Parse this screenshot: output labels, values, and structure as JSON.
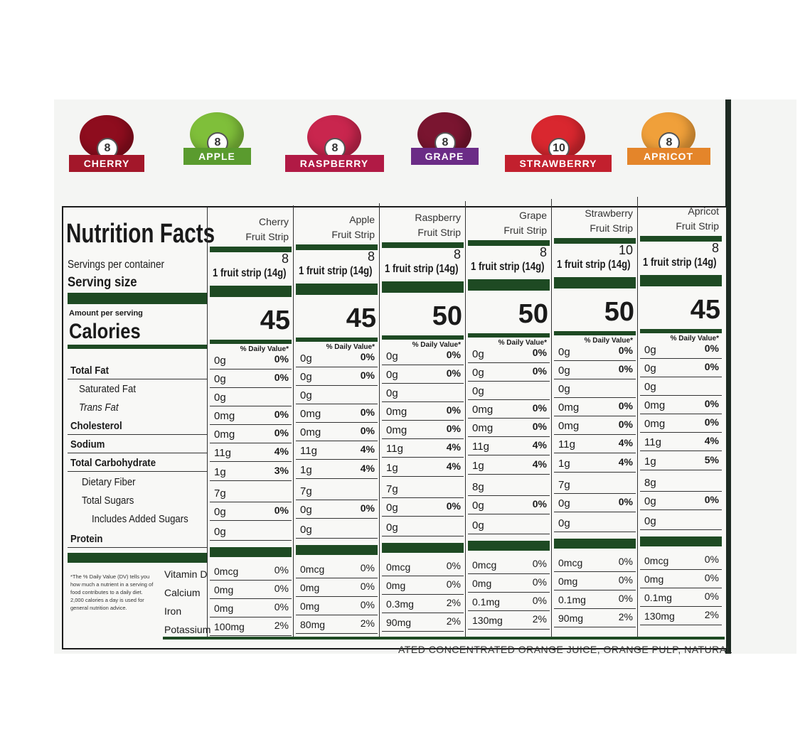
{
  "flavors": [
    {
      "name": "CHERRY",
      "count": "8",
      "color": "#a3172a",
      "fruit": "#8e0d1e"
    },
    {
      "name": "APPLE",
      "count": "8",
      "color": "#5a9b2e",
      "fruit": "#7fbf3a"
    },
    {
      "name": "RASPBERRY",
      "count": "8",
      "color": "#b11a45",
      "fruit": "#c9264e"
    },
    {
      "name": "GRAPE",
      "count": "8",
      "color": "#6b2c86",
      "fruit": "#7a1530"
    },
    {
      "name": "STRAWBERRY",
      "count": "10",
      "color": "#c2202e",
      "fruit": "#d9272f"
    },
    {
      "name": "APRICOT",
      "count": "8",
      "color": "#e4852a",
      "fruit": "#f0a03a"
    }
  ],
  "label": {
    "title": "Nutrition Facts",
    "servings_label": "Servings per container",
    "serving_size_label": "Serving size",
    "amount_label": "Amount per serving",
    "calories_label": "Calories",
    "dv_label": "% Daily Value*",
    "nutrients": [
      "Total Fat",
      "Saturated Fat",
      "Trans Fat",
      "Cholesterol",
      "Sodium",
      "Total Carbohydrate",
      "Dietary Fiber",
      "Total Sugars",
      "Includes Added Sugars",
      "Protein"
    ],
    "minerals": [
      "Vitamin D",
      "Calcium",
      "Iron",
      "Potassium"
    ],
    "footnote": "*The % Daily Value (DV) tells you how much a nutrient in a serving of food contributes to a daily diet. 2,000 calories a day is used for general nutrition advice."
  },
  "columns": [
    {
      "name1": "Cherry",
      "name2": "Fruit Strip",
      "servings": "8",
      "size": "1 fruit strip (14g)",
      "calories": "45",
      "amounts": [
        "0g",
        "0g",
        "0g",
        "0mg",
        "0mg",
        "11g",
        "1g",
        "7g",
        "0g",
        "0g"
      ],
      "dv": [
        "0%",
        "0%",
        "",
        "0%",
        "0%",
        "4%",
        "3%",
        "",
        "0%",
        ""
      ],
      "min_amounts": [
        "0mcg",
        "0mg",
        "0mg",
        "100mg"
      ],
      "min_dv": [
        "0%",
        "0%",
        "0%",
        "2%"
      ]
    },
    {
      "name1": "Apple",
      "name2": "Fruit Strip",
      "servings": "8",
      "size": "1 fruit strip (14g)",
      "calories": "45",
      "amounts": [
        "0g",
        "0g",
        "0g",
        "0mg",
        "0mg",
        "11g",
        "1g",
        "7g",
        "0g",
        "0g"
      ],
      "dv": [
        "0%",
        "0%",
        "",
        "0%",
        "0%",
        "4%",
        "4%",
        "",
        "0%",
        ""
      ],
      "min_amounts": [
        "0mcg",
        "0mg",
        "0mg",
        "80mg"
      ],
      "min_dv": [
        "0%",
        "0%",
        "0%",
        "2%"
      ]
    },
    {
      "name1": "Raspberry",
      "name2": "Fruit Strip",
      "servings": "8",
      "size": "1 fruit strip (14g)",
      "calories": "50",
      "amounts": [
        "0g",
        "0g",
        "0g",
        "0mg",
        "0mg",
        "11g",
        "1g",
        "7g",
        "0g",
        "0g"
      ],
      "dv": [
        "0%",
        "0%",
        "",
        "0%",
        "0%",
        "4%",
        "4%",
        "",
        "0%",
        ""
      ],
      "min_amounts": [
        "0mcg",
        "0mg",
        "0.3mg",
        "90mg"
      ],
      "min_dv": [
        "0%",
        "0%",
        "2%",
        "2%"
      ]
    },
    {
      "name1": "Grape",
      "name2": "Fruit Strip",
      "servings": "8",
      "size": "1 fruit strip (14g)",
      "calories": "50",
      "amounts": [
        "0g",
        "0g",
        "0g",
        "0mg",
        "0mg",
        "11g",
        "1g",
        "8g",
        "0g",
        "0g"
      ],
      "dv": [
        "0%",
        "0%",
        "",
        "0%",
        "0%",
        "4%",
        "4%",
        "",
        "0%",
        ""
      ],
      "min_amounts": [
        "0mcg",
        "0mg",
        "0.1mg",
        "130mg"
      ],
      "min_dv": [
        "0%",
        "0%",
        "0%",
        "2%"
      ]
    },
    {
      "name1": "Strawberry",
      "name2": "Fruit Strip",
      "servings": "10",
      "size": "1 fruit strip (14g)",
      "calories": "50",
      "amounts": [
        "0g",
        "0g",
        "0g",
        "0mg",
        "0mg",
        "11g",
        "1g",
        "7g",
        "0g",
        "0g"
      ],
      "dv": [
        "0%",
        "0%",
        "",
        "0%",
        "0%",
        "4%",
        "4%",
        "",
        "0%",
        ""
      ],
      "min_amounts": [
        "0mcg",
        "0mg",
        "0.1mg",
        "90mg"
      ],
      "min_dv": [
        "0%",
        "0%",
        "0%",
        "2%"
      ]
    },
    {
      "name1": "Apricot",
      "name2": "Fruit Strip",
      "servings": "8",
      "size": "1 fruit strip (14g)",
      "calories": "45",
      "amounts": [
        "0g",
        "0g",
        "0g",
        "0mg",
        "0mg",
        "11g",
        "1g",
        "8g",
        "0g",
        "0g"
      ],
      "dv": [
        "0%",
        "0%",
        "",
        "0%",
        "0%",
        "4%",
        "5%",
        "",
        "0%",
        ""
      ],
      "min_amounts": [
        "0mcg",
        "0mg",
        "0.1mg",
        "130mg"
      ],
      "min_dv": [
        "0%",
        "0%",
        "0%",
        "2%"
      ]
    }
  ],
  "footer_text": "ATED CONCENTRATED ORANGE JUICE, ORANGE PULP, NATURAL"
}
